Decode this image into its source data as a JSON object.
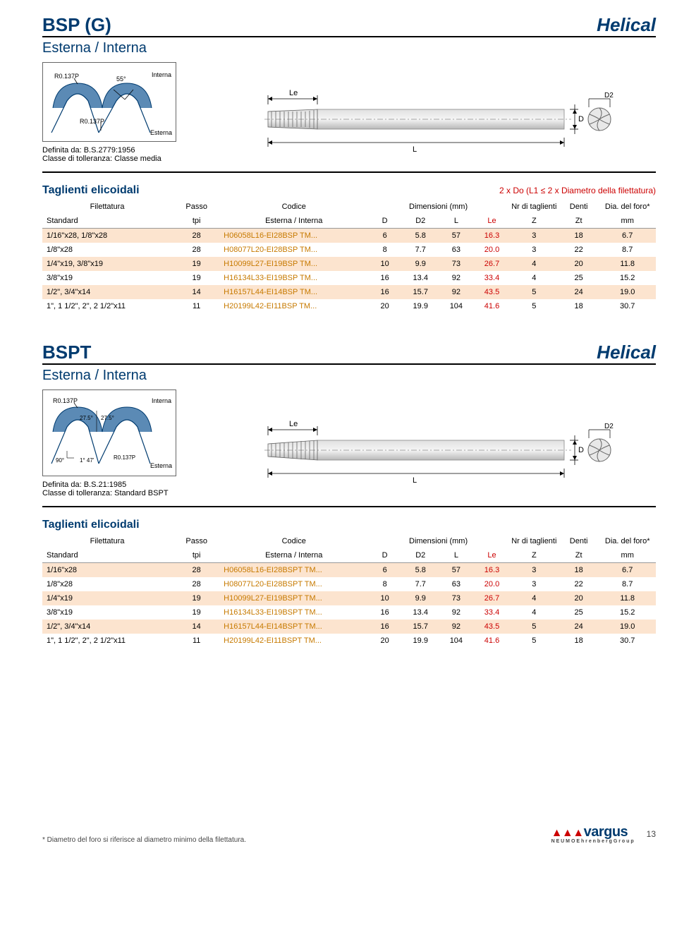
{
  "section1": {
    "titleLeft": "BSP (G)",
    "titleRight": "Helical",
    "subtitle": "Esterna / Interna",
    "diagram": {
      "rLabelTop": "R0.137P",
      "angleLabel": "55°",
      "interna": "Interna",
      "rLabelBot": "R0.137P",
      "esterna": "Esterna"
    },
    "definita": "Definita da: B.S.2779:1956",
    "classe": "Classe di tolleranza: Classe media",
    "dimLabels": {
      "Le": "Le",
      "L": "L",
      "D": "D",
      "D2": "D2"
    },
    "sectionTitle": "Taglienti elicoidali",
    "noteRight": "2 x Do (L1 ≤ 2 x Diametro della filettatura)",
    "headers": {
      "filettatura": "Filettatura",
      "passo": "Passo",
      "codice": "Codice",
      "dimensioni": "Dimensioni (mm)",
      "nrdi": "Nr di taglienti",
      "denti": "Denti",
      "dia": "Dia. del foro*",
      "standard": "Standard",
      "tpi": "tpi",
      "ie": "Esterna / Interna",
      "D": "D",
      "D2": "D2",
      "L": "L",
      "Le": "Le",
      "Z": "Z",
      "Zt": "Zt",
      "mm": "mm"
    },
    "rows": [
      {
        "filettatura": "1/16\"x28, 1/8\"x28",
        "passo": "28",
        "codice": "H06058L16-EI28BSP TM...",
        "D": "6",
        "D2": "5.8",
        "L": "57",
        "Le": "16.3",
        "Z": "3",
        "Zt": "18",
        "mm": "6.7"
      },
      {
        "filettatura": "1/8\"x28",
        "passo": "28",
        "codice": "H08077L20-EI28BSP TM...",
        "D": "8",
        "D2": "7.7",
        "L": "63",
        "Le": "20.0",
        "Z": "3",
        "Zt": "22",
        "mm": "8.7"
      },
      {
        "filettatura": "1/4\"x19, 3/8\"x19",
        "passo": "19",
        "codice": "H10099L27-EI19BSP TM...",
        "D": "10",
        "D2": "9.9",
        "L": "73",
        "Le": "26.7",
        "Z": "4",
        "Zt": "20",
        "mm": "11.8"
      },
      {
        "filettatura": "3/8\"x19",
        "passo": "19",
        "codice": "H16134L33-EI19BSP TM...",
        "D": "16",
        "D2": "13.4",
        "L": "92",
        "Le": "33.4",
        "Z": "4",
        "Zt": "25",
        "mm": "15.2"
      },
      {
        "filettatura": "1/2\", 3/4\"x14",
        "passo": "14",
        "codice": "H16157L44-EI14BSP TM...",
        "D": "16",
        "D2": "15.7",
        "L": "92",
        "Le": "43.5",
        "Z": "5",
        "Zt": "24",
        "mm": "19.0"
      },
      {
        "filettatura": "1\", 1 1/2\", 2\", 2 1/2\"x11",
        "passo": "11",
        "codice": "H20199L42-EI11BSP TM...",
        "D": "20",
        "D2": "19.9",
        "L": "104",
        "Le": "41.6",
        "Z": "5",
        "Zt": "18",
        "mm": "30.7"
      }
    ],
    "bands": [
      "band",
      "plain",
      "band",
      "plain",
      "band",
      "plain"
    ]
  },
  "section2": {
    "titleLeft": "BSPT",
    "titleRight": "Helical",
    "subtitle": "Esterna / Interna",
    "diagram": {
      "rLabelTop": "R0.137P",
      "angleLabel1": "27.5°",
      "angleLabel2": "27.5°",
      "angle90": "90°",
      "taperAngle": "1° 47'",
      "rLabelBot": "R0.137P",
      "interna": "Interna",
      "esterna": "Esterna"
    },
    "definita": "Definita da: B.S.21:1985",
    "classe": "Classe di tolleranza: Standard BSPT",
    "dimLabels": {
      "Le": "Le",
      "L": "L",
      "D": "D",
      "D2": "D2"
    },
    "sectionTitle": "Taglienti elicoidali",
    "headers": {
      "filettatura": "Filettatura",
      "passo": "Passo",
      "codice": "Codice",
      "dimensioni": "Dimensioni (mm)",
      "nrdi": "Nr di taglienti",
      "denti": "Denti",
      "dia": "Dia. del foro*",
      "standard": "Standard",
      "tpi": "tpi",
      "ie": "Esterna / Interna",
      "D": "D",
      "D2": "D2",
      "L": "L",
      "Le": "Le",
      "Z": "Z",
      "Zt": "Zt",
      "mm": "mm"
    },
    "rows": [
      {
        "filettatura": "1/16\"x28",
        "passo": "28",
        "codice": "H06058L16-EI28BSPT TM...",
        "D": "6",
        "D2": "5.8",
        "L": "57",
        "Le": "16.3",
        "Z": "3",
        "Zt": "18",
        "mm": "6.7"
      },
      {
        "filettatura": "1/8\"x28",
        "passo": "28",
        "codice": "H08077L20-EI28BSPT TM...",
        "D": "8",
        "D2": "7.7",
        "L": "63",
        "Le": "20.0",
        "Z": "3",
        "Zt": "22",
        "mm": "8.7"
      },
      {
        "filettatura": "1/4\"x19",
        "passo": "19",
        "codice": "H10099L27-EI19BSPT TM...",
        "D": "10",
        "D2": "9.9",
        "L": "73",
        "Le": "26.7",
        "Z": "4",
        "Zt": "20",
        "mm": "11.8"
      },
      {
        "filettatura": "3/8\"x19",
        "passo": "19",
        "codice": "H16134L33-EI19BSPT TM...",
        "D": "16",
        "D2": "13.4",
        "L": "92",
        "Le": "33.4",
        "Z": "4",
        "Zt": "25",
        "mm": "15.2"
      },
      {
        "filettatura": "1/2\", 3/4\"x14",
        "passo": "14",
        "codice": "H16157L44-EI14BSPT TM...",
        "D": "16",
        "D2": "15.7",
        "L": "92",
        "Le": "43.5",
        "Z": "5",
        "Zt": "24",
        "mm": "19.0"
      },
      {
        "filettatura": "1\", 1 1/2\", 2\", 2 1/2\"x11",
        "passo": "11",
        "codice": "H20199L42-EI11BSPT TM...",
        "D": "20",
        "D2": "19.9",
        "L": "104",
        "Le": "41.6",
        "Z": "5",
        "Zt": "18",
        "mm": "30.7"
      }
    ],
    "bands": [
      "band",
      "plain",
      "band",
      "plain",
      "band",
      "plain"
    ]
  },
  "footer": {
    "note": "* Diametro del foro si riferisce al diametro minimo della filettatura.",
    "brand": "vargus",
    "triangles": "▲▲▲",
    "brandSub": "N E U M O  E h r e n b e r g  G r o u p",
    "page": "13"
  },
  "colors": {
    "brand": "#003b6f",
    "band": "#fce4cf",
    "codice": "#c77a00",
    "red": "#c00",
    "rule": "#000"
  }
}
